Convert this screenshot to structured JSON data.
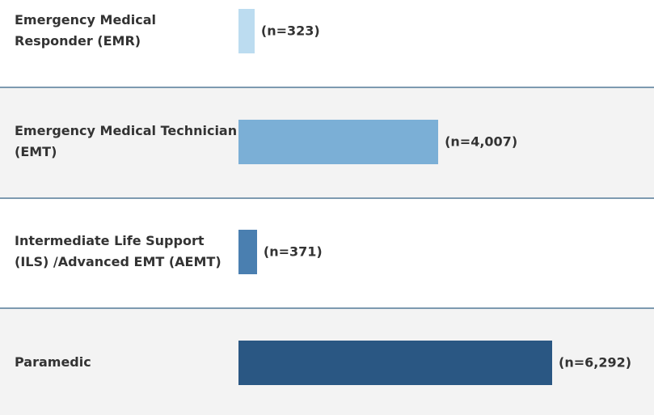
{
  "chart_data": {
    "type": "bar",
    "orientation": "horizontal",
    "categories": [
      "Emergency Medical Responder (EMR)",
      "Emergency Medical Technician (EMT)",
      "Intermediate Life Support (ILS) /Advanced EMT (AEMT)",
      "Paramedic"
    ],
    "values": [
      323,
      4007,
      371,
      6292
    ],
    "value_labels": [
      "(n=323)",
      "(n=4,007)",
      "(n=371)",
      "(n=6,292)"
    ],
    "colors": [
      "#bcdcf0",
      "#7bafd6",
      "#4a7fb0",
      "#2a5783"
    ]
  }
}
